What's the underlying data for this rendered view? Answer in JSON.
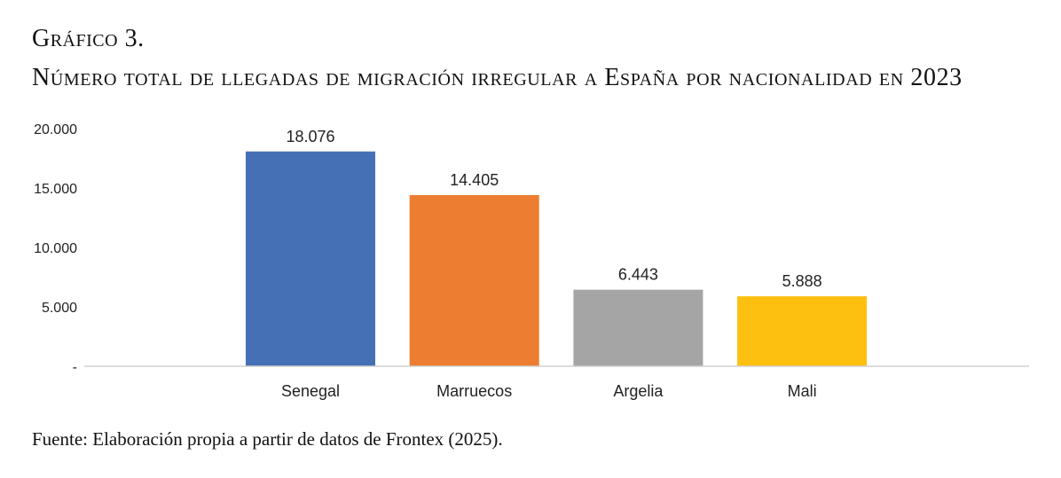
{
  "header": {
    "figure_label": "Gráfico 3.",
    "title": "Número total de llegadas de migración irregular a España por nacionalidad en 2023"
  },
  "footer": {
    "source": "Fuente: Elaboración propia a partir de datos de Frontex (2025)."
  },
  "chart_data": {
    "type": "bar",
    "title": "Número total de llegadas de migración irregular a España por nacionalidad en 2023",
    "xlabel": "",
    "ylabel": "",
    "categories": [
      "Senegal",
      "Marruecos",
      "Argelia",
      "Mali"
    ],
    "values": [
      18076,
      14405,
      6443,
      5888
    ],
    "data_labels": [
      "18.076",
      "14.405",
      "6.443",
      "5.888"
    ],
    "colors": [
      "#4570b5",
      "#ed7d31",
      "#a5a5a5",
      "#fdc010"
    ],
    "ylim": [
      0,
      20000
    ],
    "yticks": [
      0,
      5000,
      10000,
      15000,
      20000
    ],
    "ytick_labels": [
      "-",
      "5.000",
      "10.000",
      "15.000",
      "20.000"
    ],
    "grid": false,
    "legend": "none"
  }
}
